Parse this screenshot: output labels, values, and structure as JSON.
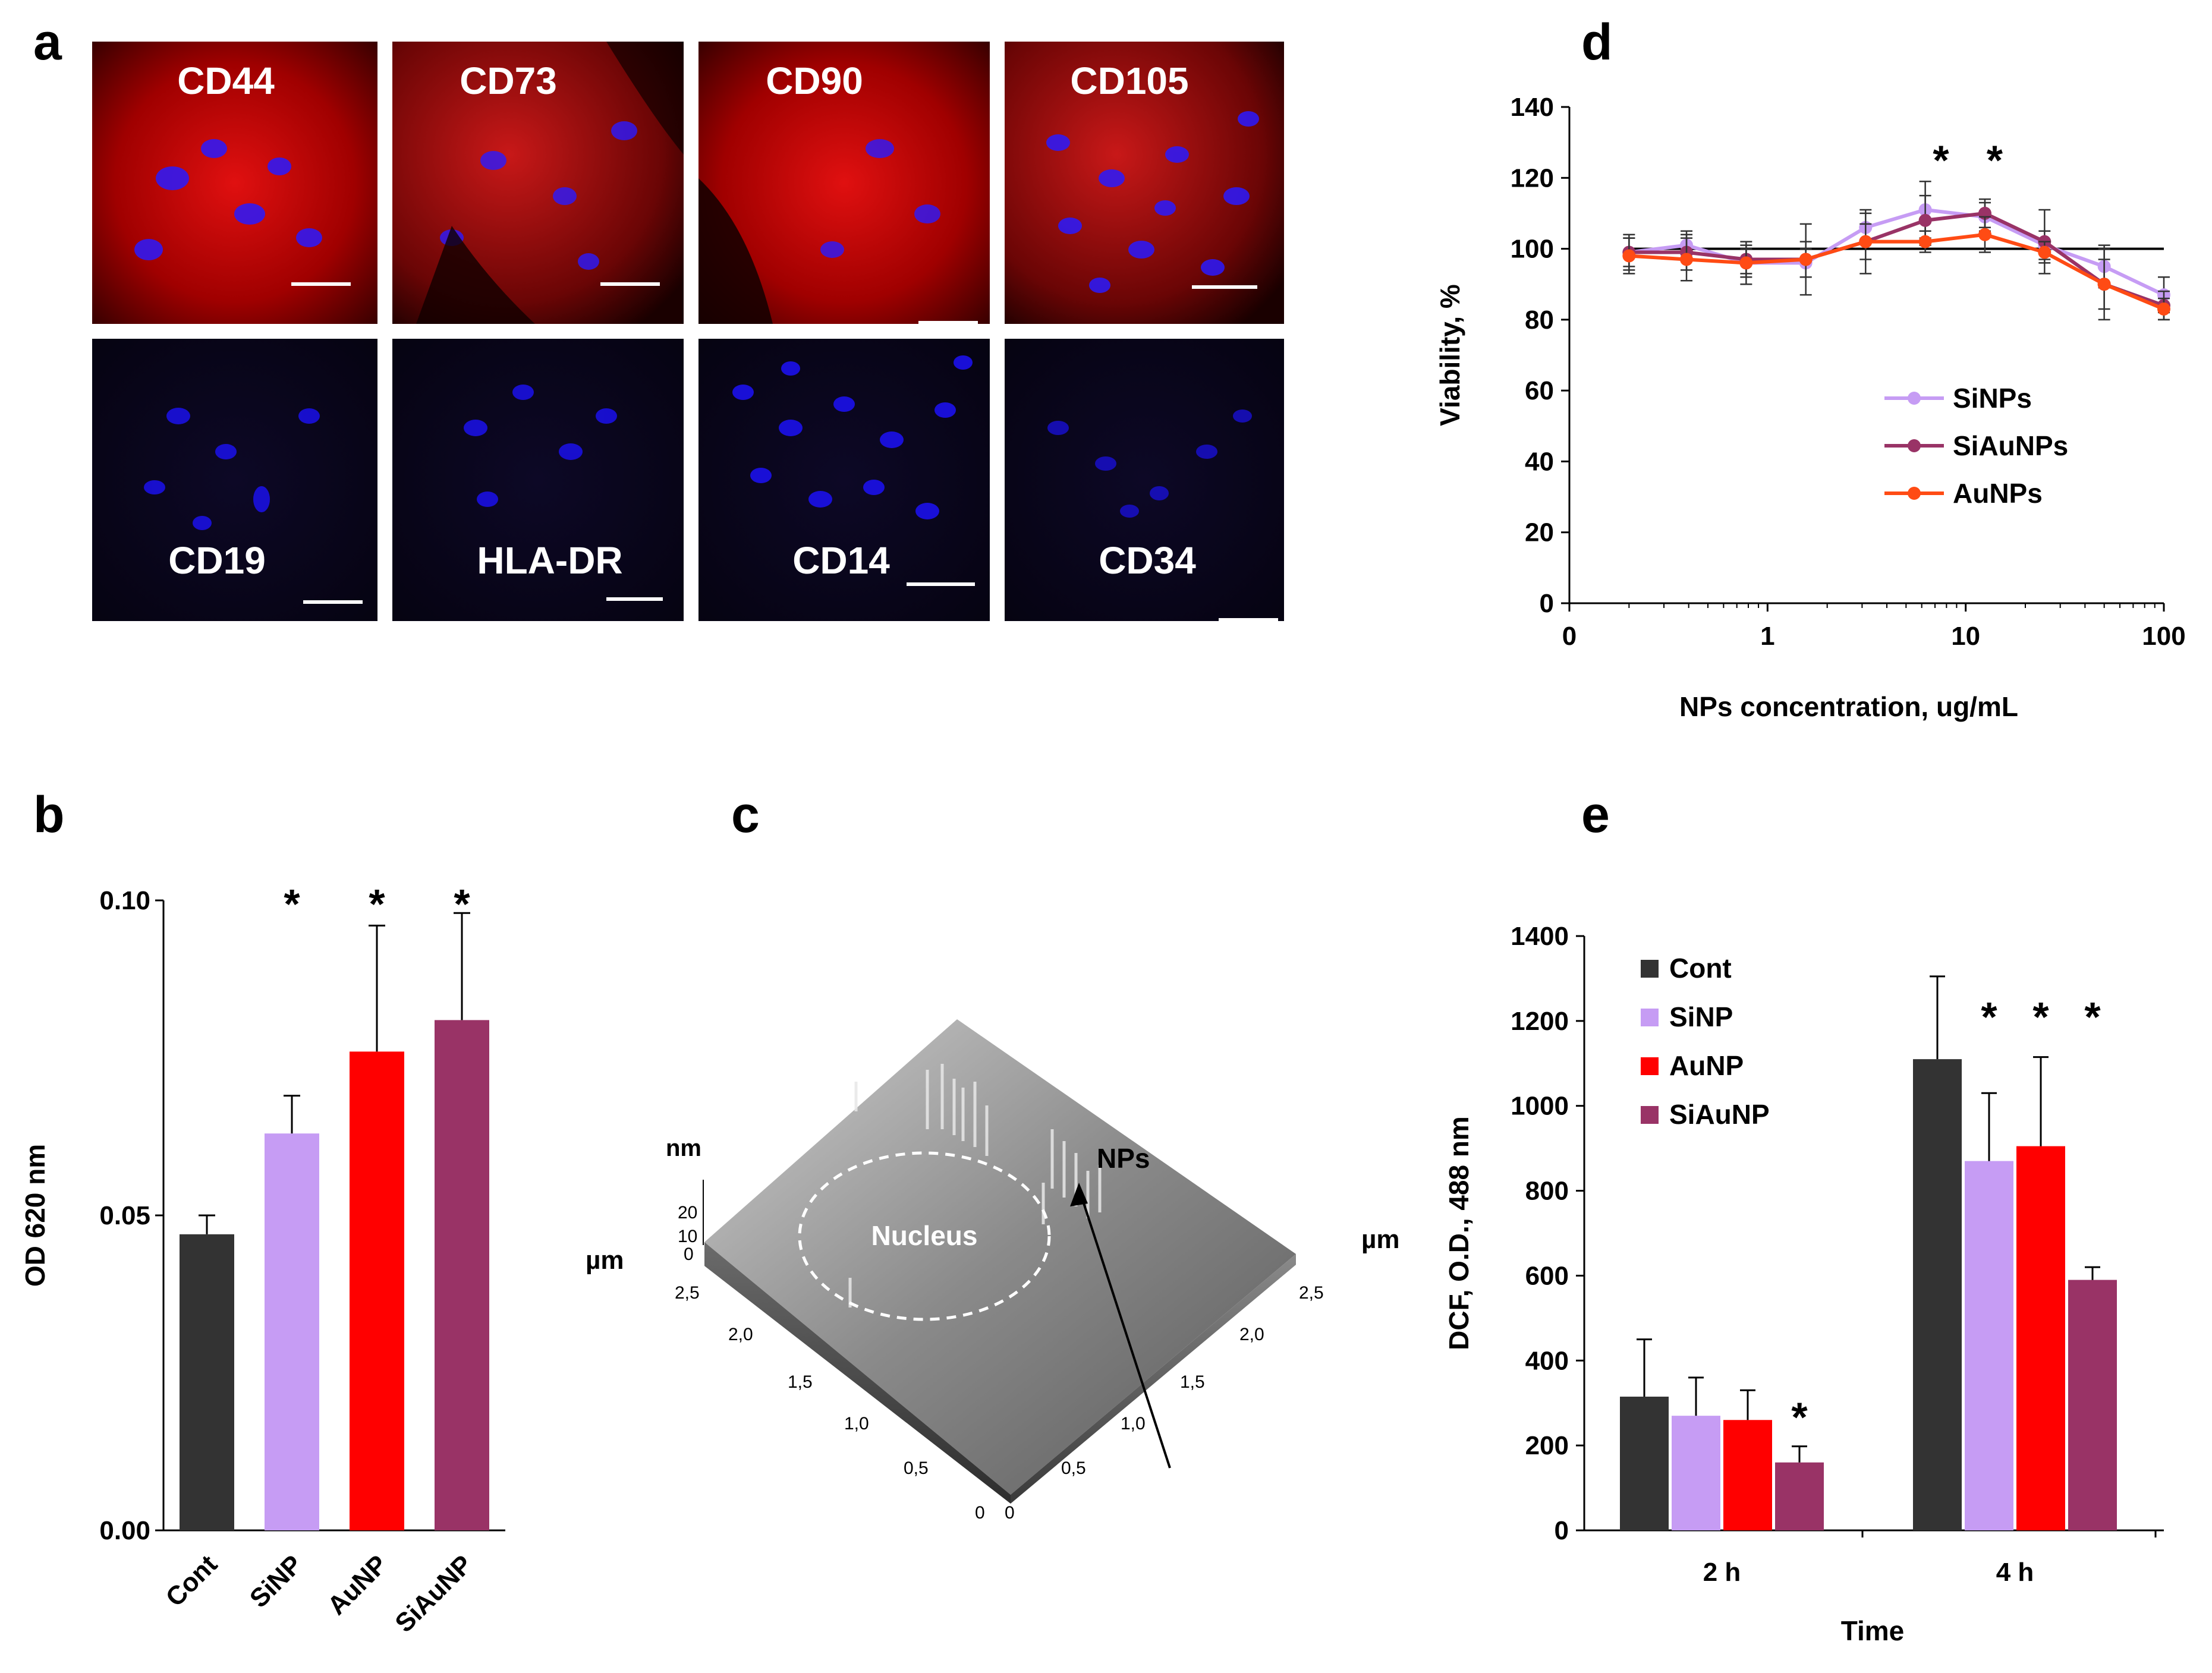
{
  "panels": {
    "a": "a",
    "b": "b",
    "c": "c",
    "d": "d",
    "e": "e"
  },
  "microscopy": {
    "top": [
      "CD44",
      "CD73",
      "CD90",
      "CD105"
    ],
    "bottom": [
      "CD19",
      "HLA-DR",
      "CD14",
      "CD34"
    ]
  },
  "afm": {
    "nm_label": "nm",
    "um_left": "µm",
    "um_right": "µm",
    "nucleus": "Nucleus",
    "nps": "NPs",
    "z_ticks": [
      "20",
      "10",
      "0"
    ],
    "left_axis_ticks": [
      "2,5",
      "2,0",
      "1,5",
      "1,0",
      "0,5",
      "0"
    ],
    "right_axis_ticks": [
      "0",
      "0,5",
      "1,0",
      "1,5",
      "2,0",
      "2,5"
    ]
  },
  "chart_data": [
    {
      "id": "b",
      "type": "bar",
      "categories": [
        "Cont",
        "SiNP",
        "AuNP",
        "SiAuNP"
      ],
      "values": [
        0.047,
        0.063,
        0.076,
        0.081
      ],
      "errors": [
        0.003,
        0.006,
        0.02,
        0.017
      ],
      "colors": [
        "#333333",
        "#c69cf4",
        "#ff0000",
        "#993366"
      ],
      "significance": [
        "",
        "*",
        "*",
        "*"
      ],
      "ylabel": "OD 620 nm",
      "ylim": [
        0,
        0.1
      ],
      "yticks": [
        "0.00",
        "0.05",
        "0.10"
      ]
    },
    {
      "id": "d",
      "type": "line",
      "xscale": "log",
      "xlabel": "NPs concentration, ug/mL",
      "ylabel": "Viability, %",
      "ylim": [
        0,
        140
      ],
      "yticks": [
        "0",
        "20",
        "40",
        "60",
        "80",
        "100",
        "120",
        "140"
      ],
      "xticks": [
        "0",
        "1",
        "10",
        "100"
      ],
      "x": [
        0.2,
        0.39,
        0.78,
        1.56,
        3.125,
        6.25,
        12.5,
        25,
        50,
        100
      ],
      "reference_line": 100,
      "significance_at_x": [
        7.5,
        14
      ],
      "significance": "*",
      "series": [
        {
          "name": "SiNPs",
          "color": "#c69cf4",
          "values": [
            99,
            101,
            96,
            96,
            106,
            111,
            109,
            101,
            95,
            87
          ],
          "errors": [
            4,
            4,
            4,
            4,
            4,
            8,
            4,
            4,
            6,
            5
          ]
        },
        {
          "name": "SiAuNPs",
          "color": "#993366",
          "values": [
            99,
            99,
            97,
            97,
            102,
            108,
            110,
            102,
            90,
            84
          ],
          "errors": [
            5,
            5,
            4,
            5,
            5,
            7,
            4,
            9,
            7,
            4
          ]
        },
        {
          "name": "AuNPs",
          "color": "#ff4b14",
          "values": [
            98,
            97,
            96,
            97,
            102,
            102,
            104,
            99,
            90,
            83
          ],
          "errors": [
            5,
            6,
            6,
            10,
            9,
            3,
            5,
            3,
            10,
            3
          ]
        }
      ]
    },
    {
      "id": "e",
      "type": "bar",
      "categories": [
        "2 h",
        "4 h"
      ],
      "xlabel": "Time",
      "ylabel": "DCF, O.D., 488 nm",
      "ylim": [
        0,
        1400
      ],
      "yticks": [
        "0",
        "200",
        "400",
        "600",
        "800",
        "1000",
        "1200",
        "1400"
      ],
      "series": [
        {
          "name": "Cont",
          "color": "#333333",
          "values": [
            315,
            1110
          ],
          "errors": [
            135,
            195
          ]
        },
        {
          "name": "SiNP",
          "color": "#c69cf4",
          "values": [
            270,
            870
          ],
          "errors": [
            90,
            160
          ]
        },
        {
          "name": "AuNP",
          "color": "#ff0000",
          "values": [
            260,
            905
          ],
          "errors": [
            70,
            210
          ]
        },
        {
          "name": "SiAuNP",
          "color": "#993366",
          "values": [
            160,
            590
          ],
          "errors": [
            38,
            30
          ]
        }
      ],
      "significance": [
        [
          "",
          "",
          "",
          "*"
        ],
        [
          "",
          "*",
          "*",
          "*"
        ]
      ]
    }
  ]
}
